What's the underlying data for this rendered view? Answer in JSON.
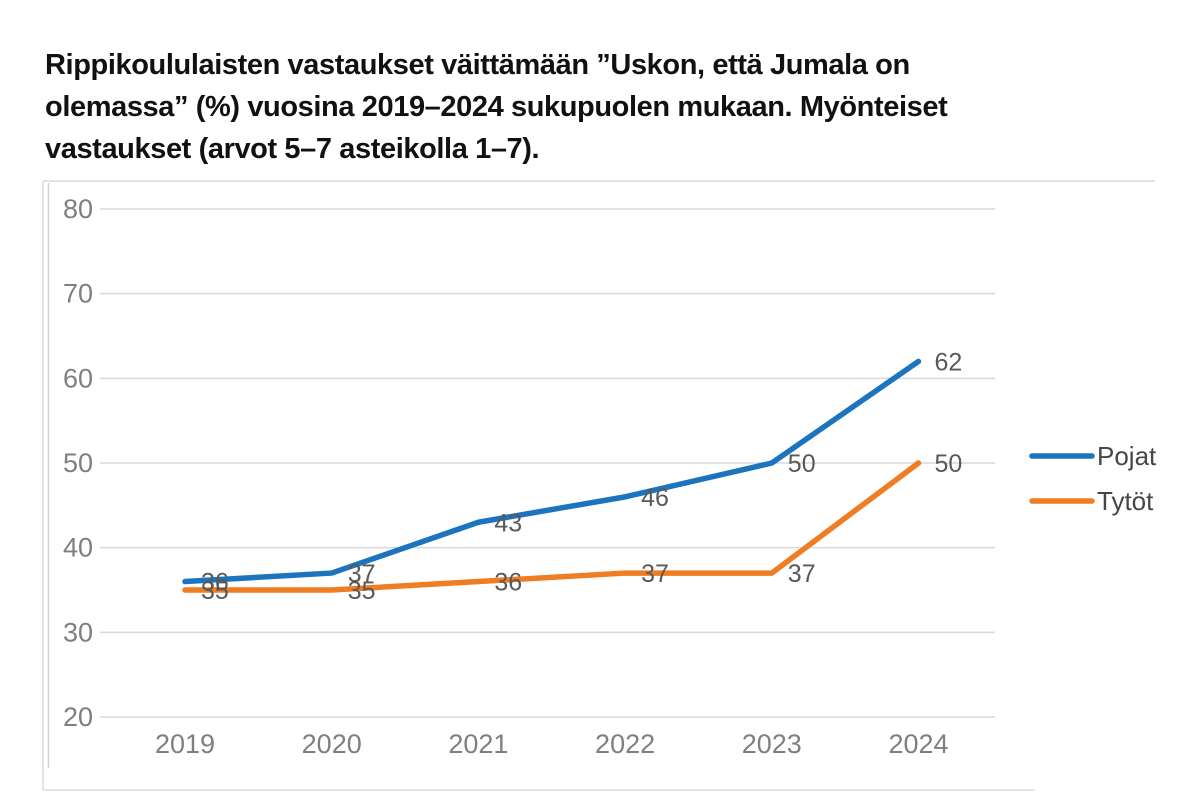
{
  "page": {
    "background": "#ffffff"
  },
  "title": {
    "lines": [
      "Rippikoululaisten vastaukset väittämään ”Uskon, että Jumala on",
      "olemassa” (%) vuosina 2019–2024 sukupuolen mukaan. Myönteiset",
      "vastaukset (arvot 5–7 asteikolla 1–7)."
    ]
  },
  "chart_data": {
    "type": "line",
    "categories": [
      "2019",
      "2020",
      "2021",
      "2022",
      "2023",
      "2024"
    ],
    "series": [
      {
        "name": "Pojat",
        "color": "#1c74bf",
        "values": [
          36,
          37,
          43,
          46,
          50,
          62
        ]
      },
      {
        "name": "Tytöt",
        "color": "#ef7d23",
        "values": [
          35,
          35,
          36,
          37,
          37,
          50
        ]
      }
    ],
    "title": "",
    "xlabel": "",
    "ylabel": "",
    "ylim": [
      20,
      80
    ],
    "yticks": [
      20,
      30,
      40,
      50,
      60,
      70,
      80
    ],
    "grid": true,
    "data_labels": true,
    "data_label_position": "right",
    "data_label_color": "#595959",
    "tick_label_color": "#7f7f7f",
    "gridline_color": "#d9d9d9",
    "legend_position": "right"
  }
}
